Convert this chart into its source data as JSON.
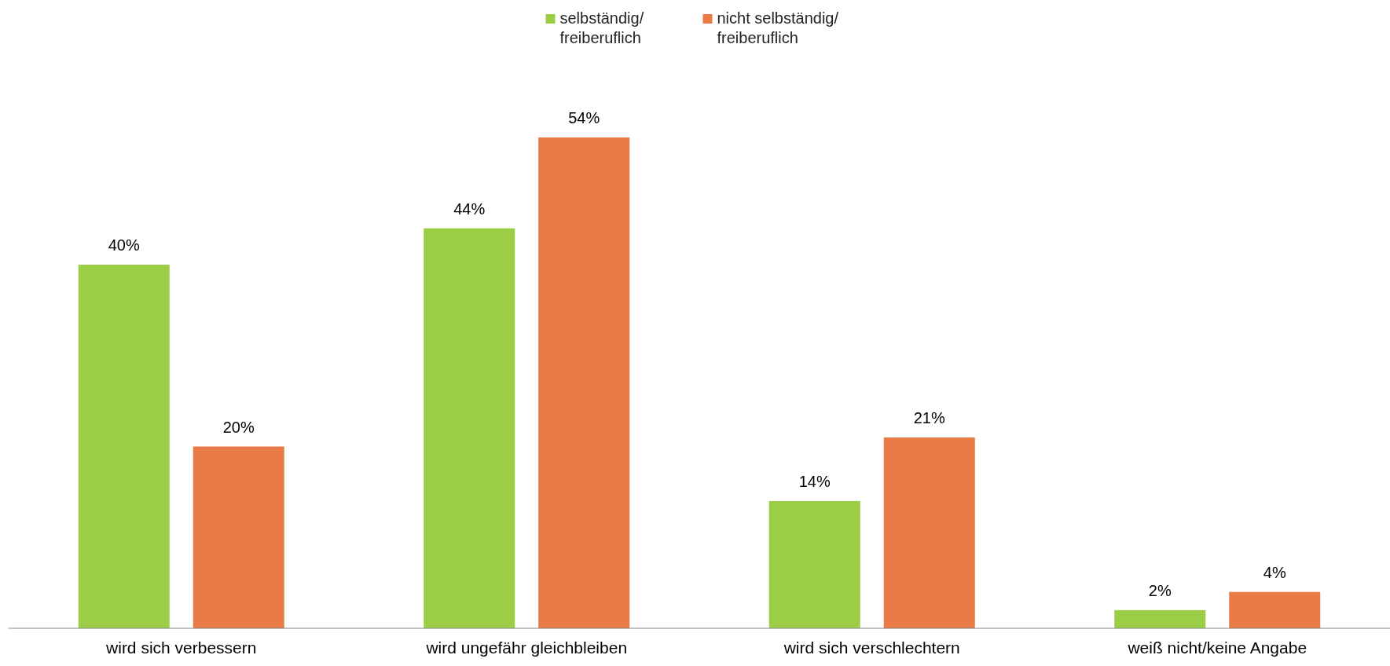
{
  "chart_data": {
    "type": "bar",
    "categories": [
      "wird sich verbessern",
      "wird ungefähr gleichbleiben",
      "wird sich verschlechtern",
      "weiß nicht/keine Angabe"
    ],
    "series": [
      {
        "name": "selbständig/ freiberuflich",
        "color": "#9bcd47",
        "values": [
          40,
          44,
          14,
          2
        ],
        "value_labels": [
          "40%",
          "44%",
          "14%",
          "2%"
        ]
      },
      {
        "name": "nicht selbständig/ freiberuflich",
        "color": "#e87b47",
        "values": [
          20,
          54,
          21,
          4
        ],
        "value_labels": [
          "20%",
          "54%",
          "21%",
          "4%"
        ]
      }
    ],
    "legend": "top"
  }
}
